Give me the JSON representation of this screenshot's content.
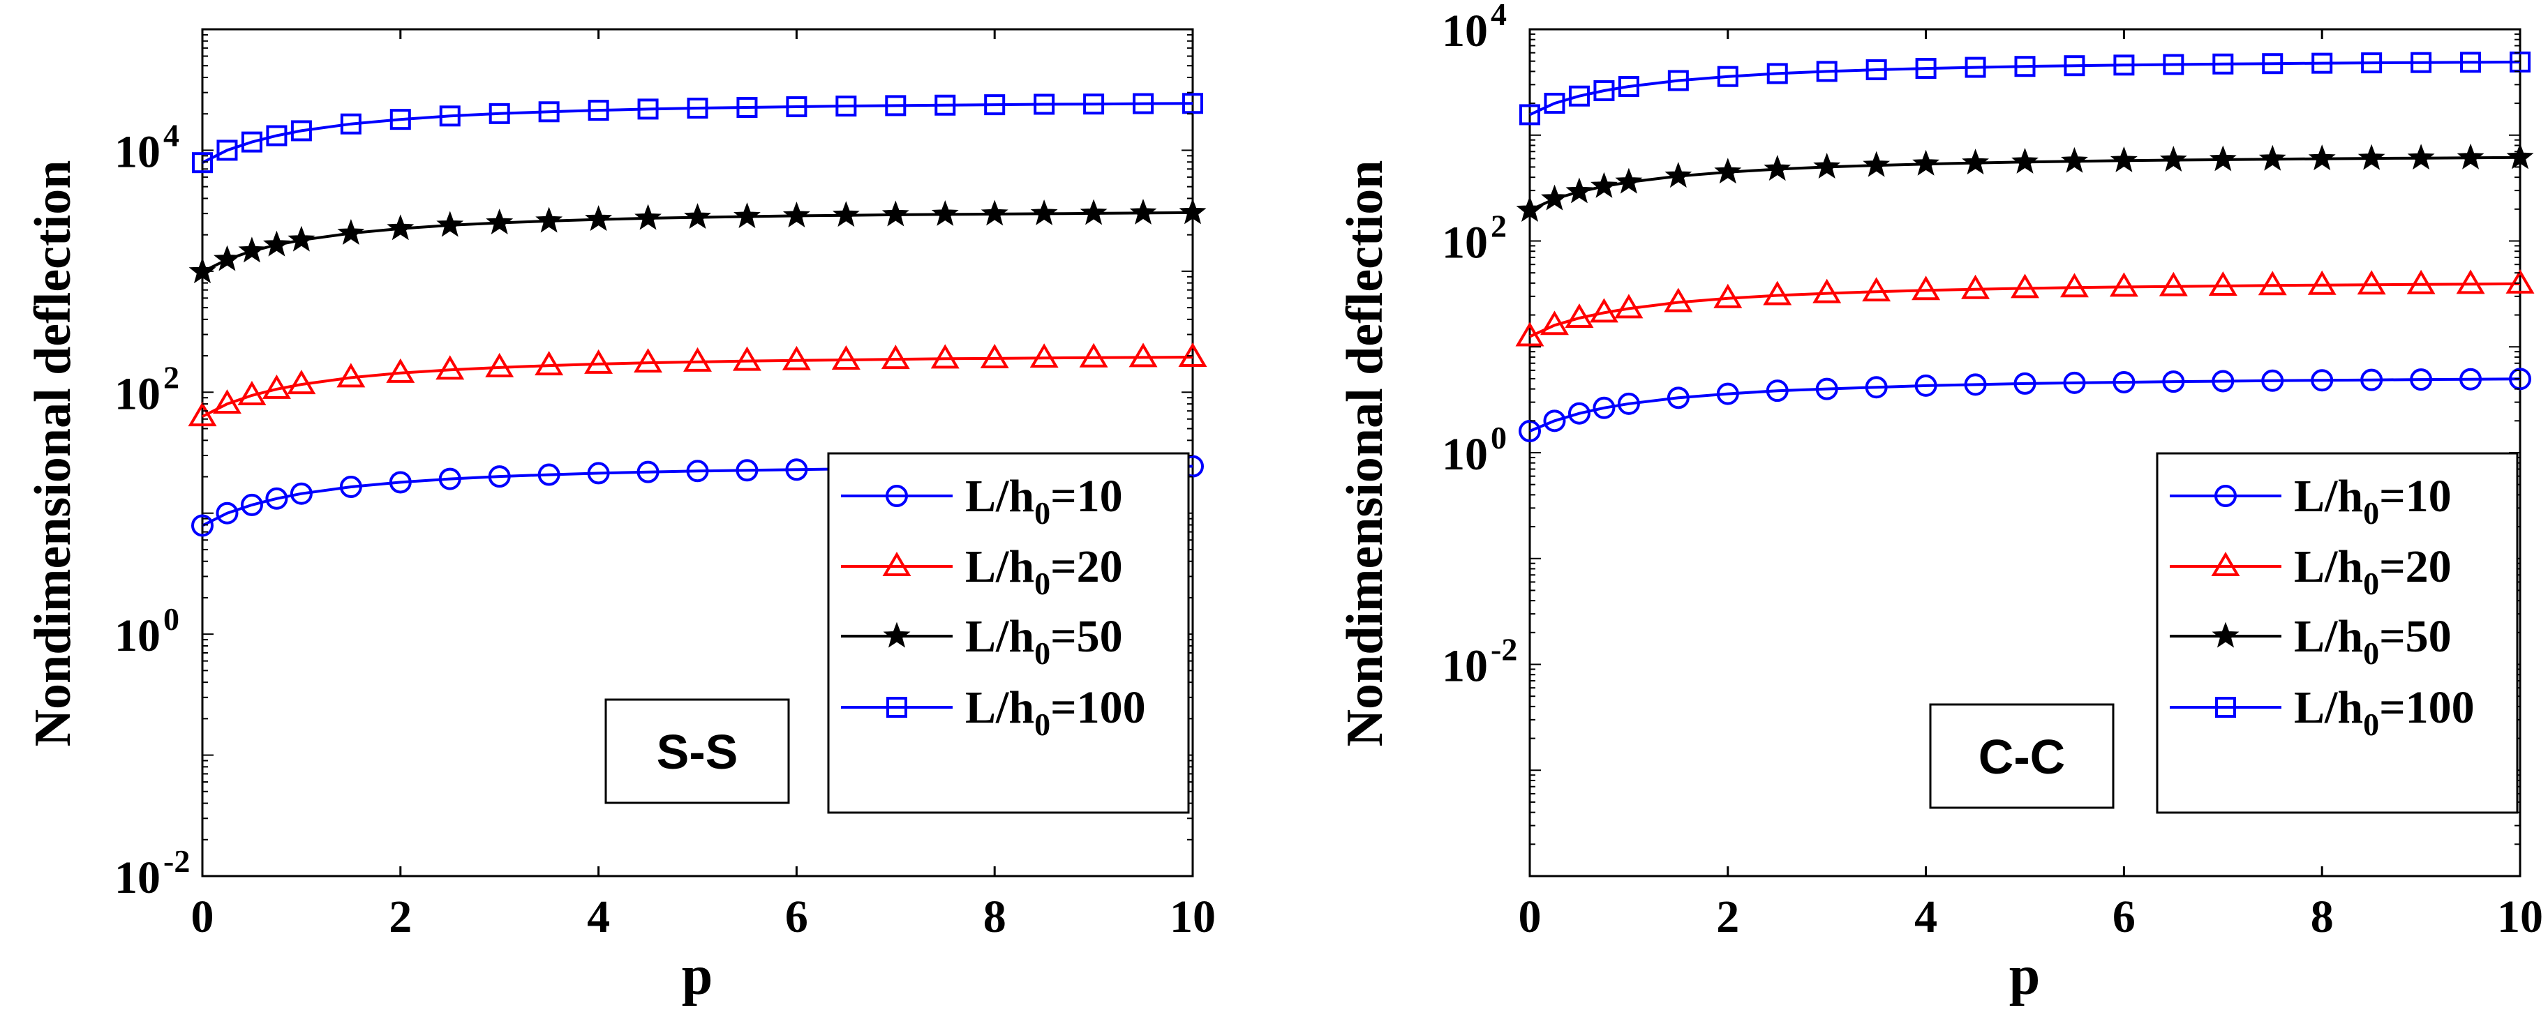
{
  "chart_data": [
    {
      "type": "line",
      "panel": "left",
      "title": "",
      "xlabel": "p",
      "ylabel": "Nondimensional deflection",
      "xlim": [
        0,
        10
      ],
      "ylim_exponent": [
        -2,
        5
      ],
      "yscale": "log",
      "xticks": [
        "0",
        "2",
        "4",
        "6",
        "8",
        "10"
      ],
      "yticks": [
        {
          "base": "10",
          "exp": "-2"
        },
        {
          "base": "10",
          "exp": "0"
        },
        {
          "base": "10",
          "exp": "2"
        },
        {
          "base": "10",
          "exp": "4"
        }
      ],
      "annotation": "S-S",
      "legend_position": "bottom-right",
      "x": [
        0,
        0.25,
        0.5,
        0.75,
        1,
        1.5,
        2,
        2.5,
        3,
        3.5,
        4,
        4.5,
        5,
        5.5,
        6,
        6.5,
        7,
        7.5,
        8,
        8.5,
        9,
        9.5,
        10
      ],
      "series": [
        {
          "name": "L/h0=10",
          "label_main": "L/h",
          "label_sub": "0",
          "label_tail": "=10",
          "color": "#0000ff",
          "marker": "circle",
          "values": [
            7.9,
            10.0,
            11.7,
            13.2,
            14.5,
            16.5,
            18.0,
            19.2,
            20.1,
            20.8,
            21.4,
            21.9,
            22.3,
            22.6,
            22.9,
            23.2,
            23.4,
            23.6,
            23.8,
            24.0,
            24.1,
            24.3,
            24.4
          ]
        },
        {
          "name": "L/h0=20",
          "label_main": "L/h",
          "label_sub": "0",
          "label_tail": "=20",
          "color": "#ff0000",
          "marker": "triangle",
          "values": [
            63,
            80,
            94,
            106,
            116,
            132,
            144,
            153,
            160,
            166,
            171,
            175,
            178,
            181,
            183,
            185,
            187,
            189,
            190,
            192,
            193,
            194,
            195
          ]
        },
        {
          "name": "L/h0=50",
          "label_main": "L/h",
          "label_sub": "0",
          "label_tail": "=50",
          "color": "#000000",
          "marker": "star",
          "values": [
            990,
            1250,
            1470,
            1650,
            1810,
            2060,
            2250,
            2400,
            2510,
            2600,
            2680,
            2740,
            2790,
            2830,
            2870,
            2900,
            2930,
            2950,
            2970,
            2990,
            3010,
            3030,
            3050
          ]
        },
        {
          "name": "L/h0=100",
          "label_main": "L/h",
          "label_sub": "0",
          "label_tail": "=100",
          "color": "#0000ff",
          "marker": "square",
          "values": [
            7900,
            10000,
            11700,
            13200,
            14500,
            16500,
            18000,
            19200,
            20100,
            20800,
            21400,
            21900,
            22300,
            22600,
            22900,
            23200,
            23400,
            23600,
            23800,
            24000,
            24100,
            24300,
            24400
          ]
        }
      ]
    },
    {
      "type": "line",
      "panel": "right",
      "title": "",
      "xlabel": "p",
      "ylabel": "Nondimensional deflection",
      "xlim": [
        0,
        10
      ],
      "ylim_exponent": [
        -4,
        4
      ],
      "yscale": "log",
      "xticks": [
        "0",
        "2",
        "4",
        "6",
        "8",
        "10"
      ],
      "yticks": [
        {
          "base": "10",
          "exp": "-2"
        },
        {
          "base": "10",
          "exp": "0"
        },
        {
          "base": "10",
          "exp": "2"
        },
        {
          "base": "10",
          "exp": "4"
        }
      ],
      "annotation": "C-C",
      "legend_position": "bottom-right",
      "x": [
        0,
        0.25,
        0.5,
        0.75,
        1,
        1.5,
        2,
        2.5,
        3,
        3.5,
        4,
        4.5,
        5,
        5.5,
        6,
        6.5,
        7,
        7.5,
        8,
        8.5,
        9,
        9.5,
        10
      ],
      "series": [
        {
          "name": "L/h0=10",
          "label_main": "L/h",
          "label_sub": "0",
          "label_tail": "=10",
          "color": "#0000ff",
          "marker": "circle",
          "values": [
            1.6,
            2.0,
            2.35,
            2.65,
            2.9,
            3.3,
            3.6,
            3.85,
            4.0,
            4.15,
            4.3,
            4.4,
            4.5,
            4.57,
            4.63,
            4.69,
            4.74,
            4.79,
            4.83,
            4.87,
            4.91,
            4.94,
            4.97
          ]
        },
        {
          "name": "L/h0=20",
          "label_main": "L/h",
          "label_sub": "0",
          "label_tail": "=20",
          "color": "#ff0000",
          "marker": "triangle",
          "values": [
            12.5,
            16.0,
            18.7,
            21.0,
            23.0,
            26.3,
            28.7,
            30.6,
            32.0,
            33.2,
            34.2,
            35.0,
            35.7,
            36.3,
            36.8,
            37.2,
            37.6,
            38.0,
            38.3,
            38.6,
            38.9,
            39.1,
            39.4
          ]
        },
        {
          "name": "L/h0=50",
          "label_main": "L/h",
          "label_sub": "0",
          "label_tail": "=50",
          "color": "#000000",
          "marker": "star",
          "values": [
            195,
            250,
            292,
            328,
            360,
            410,
            448,
            477,
            500,
            518,
            533,
            546,
            557,
            566,
            574,
            581,
            587,
            593,
            598,
            603,
            607,
            611,
            615
          ]
        },
        {
          "name": "L/h0=100",
          "label_main": "L/h",
          "label_sub": "0",
          "label_tail": "=100",
          "color": "#0000ff",
          "marker": "square",
          "values": [
            1560,
            2000,
            2340,
            2630,
            2880,
            3280,
            3580,
            3820,
            4000,
            4150,
            4270,
            4370,
            4460,
            4530,
            4590,
            4650,
            4700,
            4740,
            4780,
            4820,
            4850,
            4880,
            4910
          ]
        }
      ]
    }
  ]
}
